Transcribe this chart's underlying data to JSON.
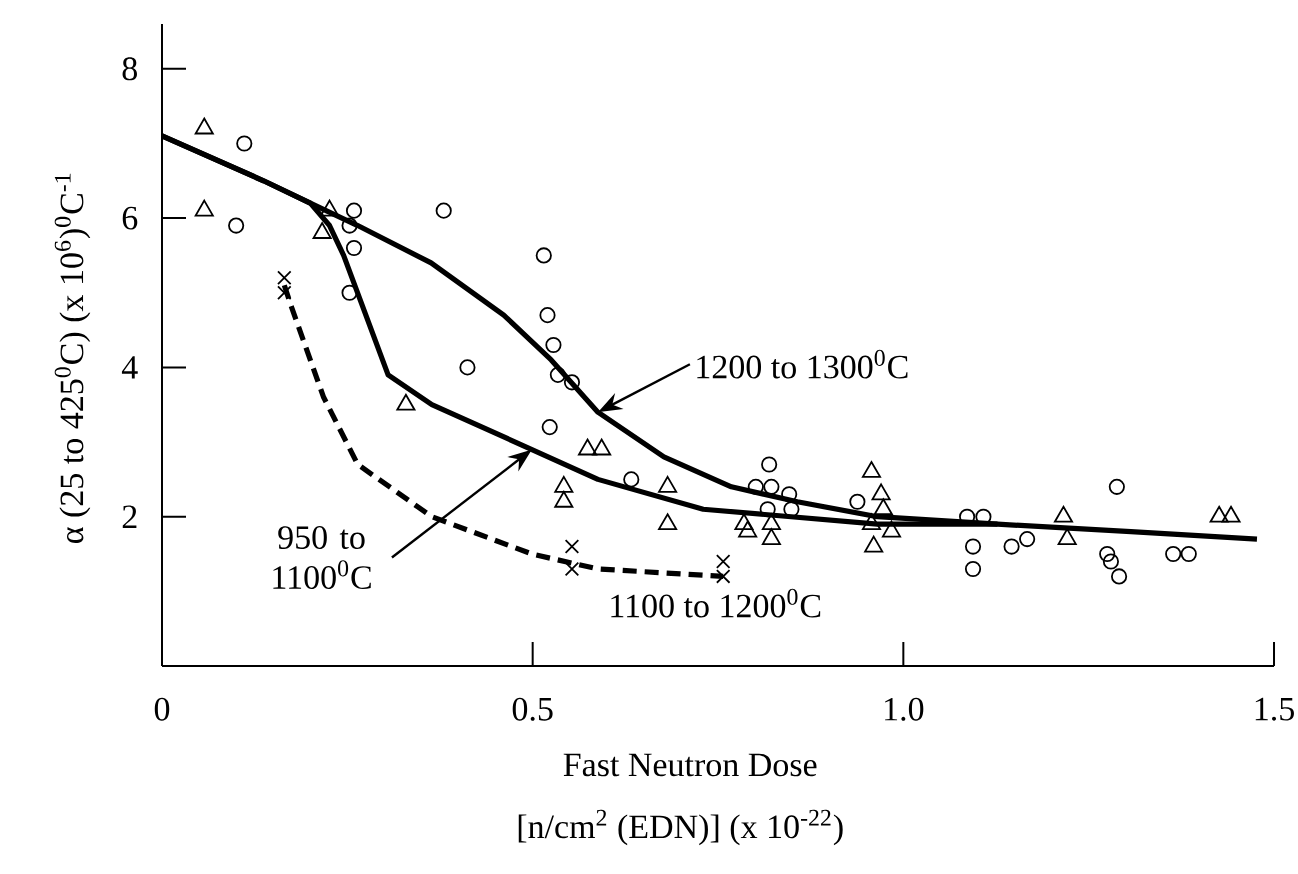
{
  "chart_data": {
    "type": "scatter",
    "xlabel": "Fast Neutron Dose",
    "ylabel": "α (25 to 425$^{0}$C) (x 10$^{6}$)$^{0}$C$^{-1}$",
    "xlim": [
      0,
      1.5
    ],
    "ylim": [
      0,
      8.6
    ],
    "xticks": [
      0,
      0.5,
      {
        "value": 1.0,
        "label": "1.0"
      },
      1.5
    ],
    "yticks": [
      2,
      4,
      6,
      8
    ],
    "grid": false,
    "series": [
      {
        "marker": "circle",
        "color": "#000000",
        "x": [
          0.111,
          0.1,
          0.259,
          0.253,
          0.259,
          0.253,
          0.38,
          0.515,
          0.52,
          0.528,
          0.534,
          0.553,
          0.412,
          0.523,
          0.633,
          0.819,
          0.801,
          0.822,
          0.846,
          0.817,
          0.849,
          0.938,
          1.086,
          1.108,
          1.094,
          1.094,
          1.146,
          1.167,
          1.288,
          1.275,
          1.28,
          1.291,
          1.364,
          1.385
        ],
        "values": [
          7.0,
          5.9,
          6.1,
          5.9,
          5.6,
          5.0,
          6.1,
          5.5,
          4.7,
          4.3,
          3.9,
          3.8,
          4.0,
          3.2,
          2.5,
          2.7,
          2.4,
          2.4,
          2.3,
          2.1,
          2.1,
          2.2,
          2.0,
          2.0,
          1.6,
          1.3,
          1.6,
          1.7,
          2.4,
          1.5,
          1.4,
          1.2,
          1.5,
          1.5
        ]
      },
      {
        "marker": "triangle",
        "color": "#000000",
        "x": [
          0.057,
          0.057,
          0.226,
          0.216,
          0.329,
          0.574,
          0.593,
          0.542,
          0.542,
          0.682,
          0.682,
          0.785,
          0.79,
          0.822,
          0.822,
          0.957,
          0.97,
          0.973,
          0.957,
          0.96,
          0.984,
          1.216,
          1.221,
          1.426,
          1.442
        ],
        "values": [
          7.2,
          6.1,
          6.1,
          5.8,
          3.5,
          2.9,
          2.9,
          2.4,
          2.2,
          2.4,
          1.9,
          1.9,
          1.8,
          1.9,
          1.7,
          2.6,
          2.3,
          2.1,
          1.9,
          1.6,
          1.8,
          2.0,
          1.7,
          2.0,
          2.0
        ]
      },
      {
        "marker": "cross",
        "color": "#000000",
        "x": [
          0.165,
          0.165,
          0.553,
          0.553,
          0.757,
          0.757
        ],
        "values": [
          5.2,
          5.0,
          1.6,
          1.3,
          1.4,
          1.2
        ]
      },
      {
        "type": "line",
        "marker": "none",
        "line_style": "solid",
        "color": "#000000",
        "x": [
          0,
          0.137,
          0.2,
          0.264,
          0.363,
          0.461,
          0.525,
          0.588,
          0.677,
          0.768,
          0.857,
          0.965,
          1.127,
          1.307,
          1.477
        ],
        "values": [
          7.1,
          6.5,
          6.2,
          5.9,
          5.4,
          4.7,
          4.1,
          3.4,
          2.8,
          2.4,
          2.2,
          2.0,
          1.9,
          1.8,
          1.7
        ]
      },
      {
        "type": "line",
        "marker": "none",
        "line_style": "solid",
        "color": "#000000",
        "x": [
          0,
          0.137,
          0.2,
          0.226,
          0.245,
          0.305,
          0.364,
          0.499,
          0.588,
          0.73,
          0.965,
          1.127
        ],
        "values": [
          7.1,
          6.5,
          6.2,
          5.9,
          5.5,
          3.9,
          3.5,
          2.9,
          2.5,
          2.1,
          1.9,
          1.9
        ]
      },
      {
        "type": "line",
        "marker": "none",
        "line_style": "dashed",
        "color": "#000000",
        "x": [
          0.165,
          0.175,
          0.218,
          0.264,
          0.364,
          0.499,
          0.588,
          0.757
        ],
        "values": [
          5.1,
          4.8,
          3.6,
          2.7,
          2.0,
          1.5,
          1.3,
          1.2
        ]
      }
    ],
    "annotations": [
      {
        "text": "1200 to 1300$^{0}$C",
        "x": 0.588,
        "y": 3.4
      },
      {
        "text": "950 to 1100$^{0}$C",
        "x": 0.499,
        "y": 2.9
      },
      {
        "text": "1100 to 1200$^{0}$C",
        "x": 0.757,
        "y": 1.2
      },
      "[n/cm$^{2}$  (EDN)] (x 10$^{-22}$)"
    ]
  }
}
